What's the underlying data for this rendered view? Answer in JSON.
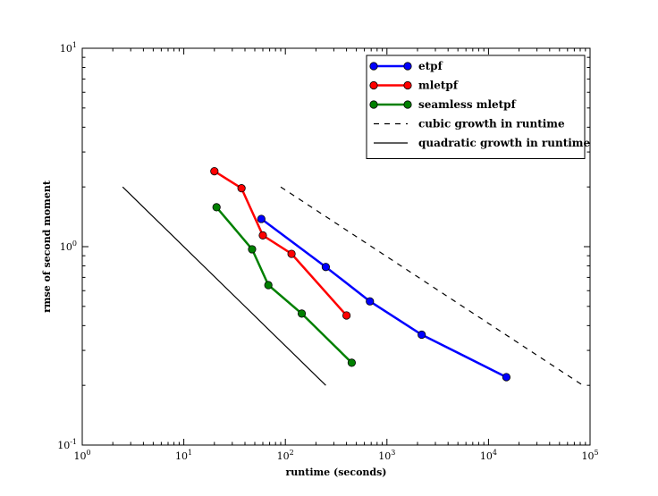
{
  "chart_data": {
    "type": "line",
    "xscale": "log",
    "yscale": "log",
    "xlabel": "runtime (seconds)",
    "ylabel": "rmse of second moment",
    "xlim": [
      1,
      100000
    ],
    "ylim": [
      0.1,
      10
    ],
    "x_ticks": [
      {
        "base": "10",
        "exp": "0",
        "value": 1
      },
      {
        "base": "10",
        "exp": "1",
        "value": 10
      },
      {
        "base": "10",
        "exp": "2",
        "value": 100
      },
      {
        "base": "10",
        "exp": "3",
        "value": 1000
      },
      {
        "base": "10",
        "exp": "4",
        "value": 10000
      },
      {
        "base": "10",
        "exp": "5",
        "value": 100000
      }
    ],
    "y_ticks": [
      {
        "base": "10",
        "exp": "-1",
        "value": 0.1
      },
      {
        "base": "10",
        "exp": "0",
        "value": 1
      },
      {
        "base": "10",
        "exp": "1",
        "value": 10
      }
    ],
    "grid": false,
    "legend_position": "top-right",
    "series": [
      {
        "name": "etpf",
        "color": "#0000ff",
        "style": "solid-markers",
        "x": [
          58,
          250,
          680,
          2200,
          15000
        ],
        "y": [
          1.38,
          0.79,
          0.53,
          0.36,
          0.22
        ]
      },
      {
        "name": "mletpf",
        "color": "#ff0000",
        "style": "solid-markers",
        "x": [
          20,
          37,
          60,
          115,
          400
        ],
        "y": [
          2.4,
          1.97,
          1.14,
          0.92,
          0.45
        ]
      },
      {
        "name": "seamless mletpf",
        "color": "#008000",
        "style": "solid-markers",
        "x": [
          21,
          47,
          68,
          145,
          450
        ],
        "y": [
          1.58,
          0.97,
          0.64,
          0.46,
          0.26
        ]
      },
      {
        "name": "cubic growth in runtime",
        "color": "#000000",
        "style": "dashed",
        "x": [
          90,
          85000
        ],
        "y": [
          2.0,
          0.2
        ]
      },
      {
        "name": "quadratic growth in runtime",
        "color": "#000000",
        "style": "solid",
        "x": [
          2.5,
          250
        ],
        "y": [
          2.0,
          0.2
        ]
      }
    ]
  }
}
